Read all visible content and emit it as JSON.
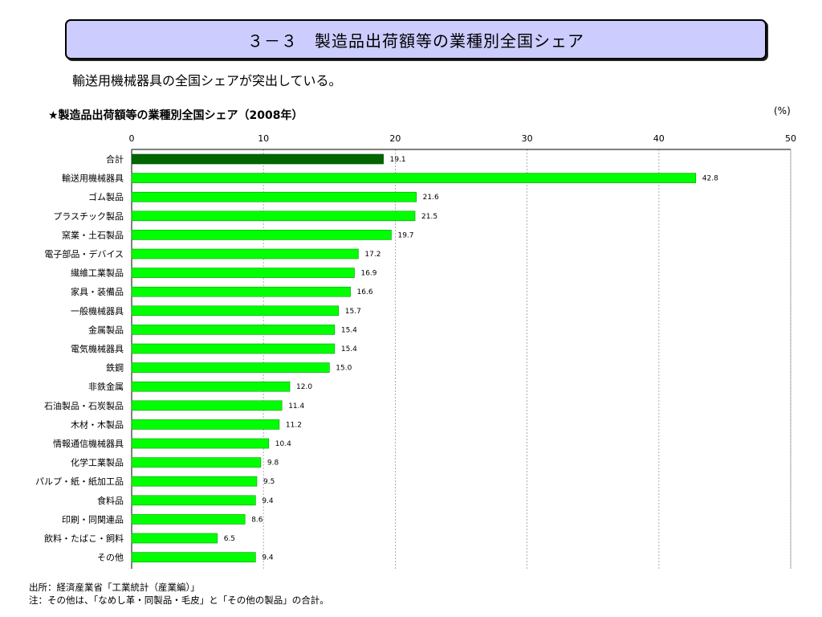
{
  "header": {
    "title": "３－３　製造品出荷額等の業種別全国シェア",
    "subtitle": "輸送用機械器具の全国シェアが突出している。"
  },
  "chart_data": {
    "type": "bar",
    "orientation": "horizontal",
    "title": "★製造品出荷額等の業種別全国シェア（2008年）",
    "unit": "(%)",
    "xlim": [
      0,
      50
    ],
    "xticks": [
      0,
      10,
      20,
      30,
      40,
      50
    ],
    "grid": true,
    "categories": [
      "合計",
      "輸送用機械器具",
      "ゴム製品",
      "プラスチック製品",
      "窯業・土石製品",
      "電子部品・デバイス",
      "繊維工業製品",
      "家具・装備品",
      "一般機械器具",
      "金属製品",
      "電気機械器具",
      "鉄鋼",
      "非鉄金属",
      "石油製品・石炭製品",
      "木材・木製品",
      "情報通信機械器具",
      "化学工業製品",
      "パルプ・紙・紙加工品",
      "食料品",
      "印刷・同関連品",
      "飲料・たばこ・飼料",
      "その他"
    ],
    "values": [
      19.1,
      42.8,
      21.6,
      21.5,
      19.7,
      17.2,
      16.9,
      16.6,
      15.7,
      15.4,
      15.4,
      15.0,
      12.0,
      11.4,
      11.2,
      10.4,
      9.8,
      9.5,
      9.4,
      8.6,
      6.5,
      9.4
    ],
    "value_labels": [
      "19.1",
      "42.8",
      "21.6",
      "21.5",
      "19.7",
      "17.2",
      "16.9",
      "16.6",
      "15.7",
      "15.4",
      "15.4",
      "15.0",
      "12.0",
      "11.4",
      "11.2",
      "10.4",
      "9.8",
      "9.5",
      "9.4",
      "8.6",
      "6.5",
      "9.4"
    ],
    "colors": {
      "total": "#006600",
      "bar": "#00ff00",
      "bar_stroke": "#009900",
      "grid": "#999999"
    }
  },
  "notes": [
    "出所：経済産業省「工業統計（産業編）」",
    "注：その他は、「なめし革・同製品・毛皮」と「その他の製品」の合計。"
  ]
}
